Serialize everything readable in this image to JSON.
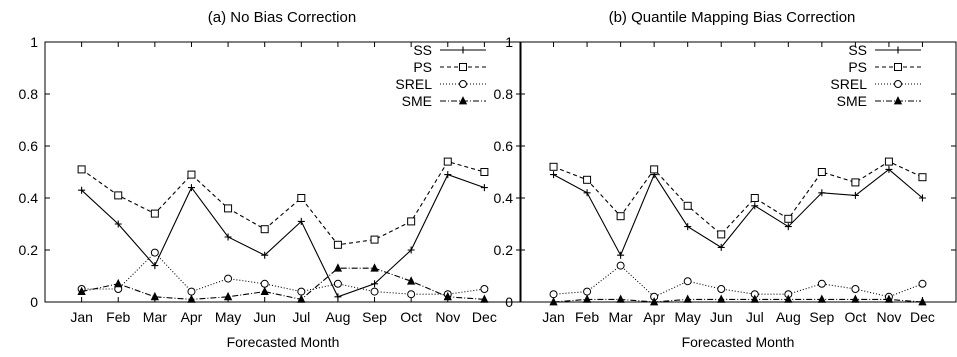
{
  "chart_data": [
    {
      "type": "line",
      "title": "(a) No Bias Correction",
      "xlabel": "Forecasted Month",
      "ylabel": "",
      "ylim": [
        0,
        1
      ],
      "yticks": [
        0,
        0.2,
        0.4,
        0.6,
        0.8,
        1
      ],
      "ytick_labels": [
        "0",
        "0.2",
        "0.4",
        "0.6",
        "0.8",
        "1"
      ],
      "categories": [
        "Jan",
        "Feb",
        "Mar",
        "Apr",
        "May",
        "Jun",
        "Jul",
        "Aug",
        "Sep",
        "Oct",
        "Nov",
        "Dec"
      ],
      "legend_position": "top-right",
      "grid": false,
      "series": [
        {
          "name": "SS",
          "marker": "plus",
          "dash": "solid",
          "values": [
            0.43,
            0.3,
            0.14,
            0.44,
            0.25,
            0.18,
            0.31,
            0.02,
            0.07,
            0.2,
            0.49,
            0.44
          ]
        },
        {
          "name": "PS",
          "marker": "square",
          "dash": "dashed",
          "values": [
            0.51,
            0.41,
            0.34,
            0.49,
            0.36,
            0.28,
            0.4,
            0.22,
            0.24,
            0.31,
            0.54,
            0.5
          ]
        },
        {
          "name": "SREL",
          "marker": "circle",
          "dash": "dotted",
          "values": [
            0.05,
            0.05,
            0.19,
            0.04,
            0.09,
            0.07,
            0.04,
            0.07,
            0.04,
            0.03,
            0.03,
            0.05
          ]
        },
        {
          "name": "SME",
          "marker": "triangle",
          "dash": "dashdot",
          "values": [
            0.04,
            0.07,
            0.02,
            0.01,
            0.02,
            0.04,
            0.01,
            0.13,
            0.13,
            0.08,
            0.02,
            0.01
          ]
        }
      ]
    },
    {
      "type": "line",
      "title": "(b) Quantile Mapping Bias Correction",
      "xlabel": "Forecasted Month",
      "ylabel": "",
      "ylim": [
        0,
        1
      ],
      "yticks": [
        0,
        0.2,
        0.4,
        0.6,
        0.8,
        1
      ],
      "ytick_labels": [
        "0",
        "0.2",
        "0.4",
        "0.6",
        "0.8",
        "1"
      ],
      "categories": [
        "Jan",
        "Feb",
        "Mar",
        "Apr",
        "May",
        "Jun",
        "Jul",
        "Aug",
        "Sep",
        "Oct",
        "Nov",
        "Dec"
      ],
      "legend_position": "top-right",
      "grid": false,
      "series": [
        {
          "name": "SS",
          "marker": "plus",
          "dash": "solid",
          "values": [
            0.49,
            0.42,
            0.18,
            0.49,
            0.29,
            0.21,
            0.37,
            0.29,
            0.42,
            0.41,
            0.51,
            0.4
          ]
        },
        {
          "name": "PS",
          "marker": "square",
          "dash": "dashed",
          "values": [
            0.52,
            0.47,
            0.33,
            0.51,
            0.37,
            0.26,
            0.4,
            0.32,
            0.5,
            0.46,
            0.54,
            0.48
          ]
        },
        {
          "name": "SREL",
          "marker": "circle",
          "dash": "dotted",
          "values": [
            0.03,
            0.04,
            0.14,
            0.02,
            0.08,
            0.05,
            0.03,
            0.03,
            0.07,
            0.05,
            0.02,
            0.07
          ]
        },
        {
          "name": "SME",
          "marker": "triangle",
          "dash": "dashdot",
          "values": [
            0.0,
            0.01,
            0.01,
            0.0,
            0.01,
            0.01,
            0.01,
            0.01,
            0.01,
            0.01,
            0.01,
            0.0
          ]
        }
      ]
    }
  ]
}
